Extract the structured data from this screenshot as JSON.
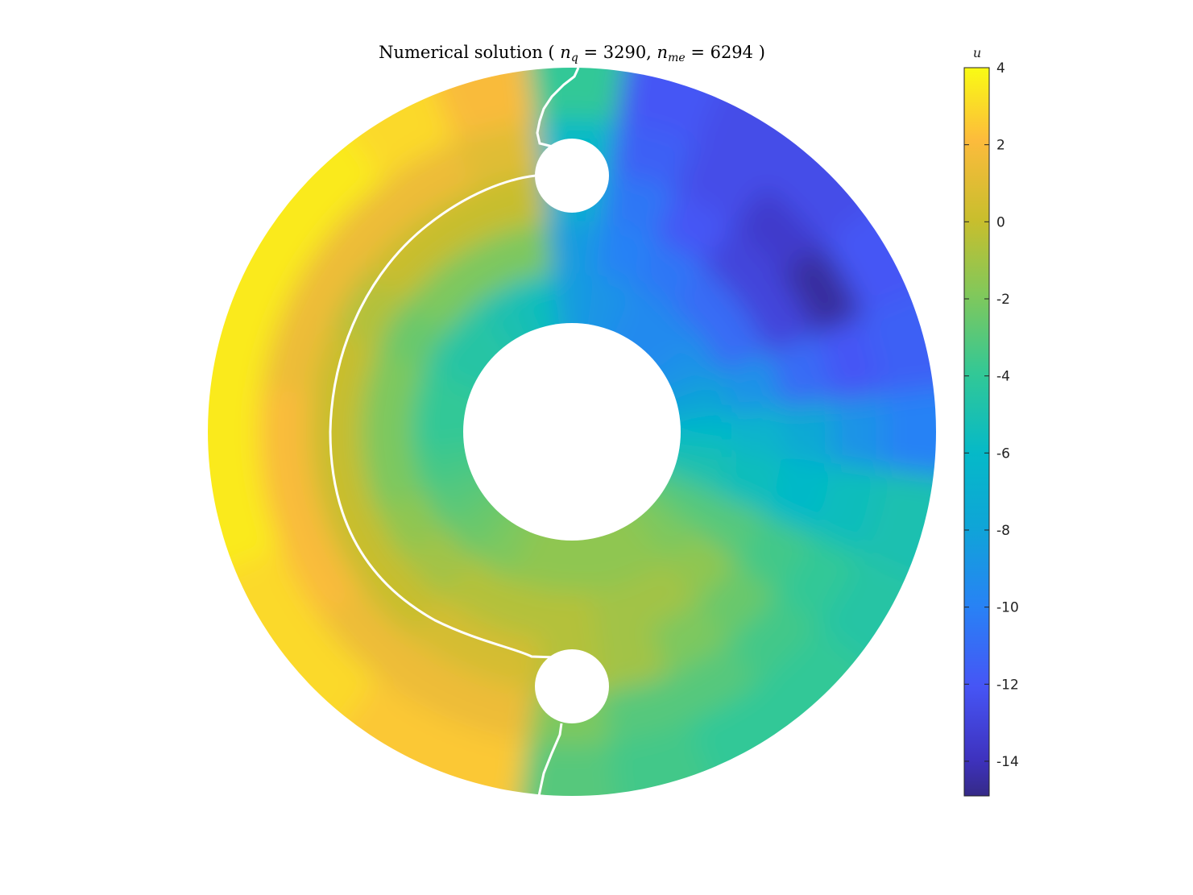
{
  "chart_data": {
    "type": "contour",
    "title": [
      {
        "text": "Numerical solution ( "
      },
      {
        "text": "n",
        "sub": "q"
      },
      {
        "text": " = 3290, "
      },
      {
        "text": "n",
        "sub": "me"
      },
      {
        "text": " = 6294 )"
      }
    ],
    "colorbar_label": "u",
    "clim": [
      -14.9,
      4
    ],
    "cticks": [
      4,
      2,
      0,
      -2,
      -4,
      -6,
      -8,
      -10,
      -12,
      -14
    ],
    "colormap": "parula",
    "r": [
      0.37,
      0.51,
      0.65,
      0.79,
      0.93
    ],
    "theta": [
      0,
      15,
      30,
      45,
      60,
      75,
      90,
      105,
      120,
      135,
      150,
      165,
      180,
      195,
      210,
      225,
      240,
      255,
      270,
      285,
      300,
      315,
      330,
      345
    ],
    "values": [
      [
        -6,
        -6.5,
        -7.5,
        -9,
        -10
      ],
      [
        -8,
        -9,
        -11,
        -12,
        -11.5
      ],
      [
        -9,
        -11,
        -13,
        -14.5,
        -12
      ],
      [
        -9.5,
        -11,
        -13,
        -13.5,
        -12.5
      ],
      [
        -9.5,
        -10.5,
        -12,
        -12.5,
        -12.5
      ],
      [
        -9,
        -10,
        -10.5,
        -11.5,
        -12
      ],
      [
        -8.5,
        -8.5,
        -7,
        -6,
        -4
      ],
      [
        -5.5,
        -2,
        0,
        1,
        2
      ],
      [
        -5,
        -2,
        0,
        1.5,
        3
      ],
      [
        -4.5,
        -2,
        0,
        1.5,
        3.5
      ],
      [
        -4.5,
        -2.5,
        -0.5,
        1.5,
        3.5
      ],
      [
        -4,
        -2,
        0,
        1.5,
        3.5
      ],
      [
        -4,
        -2,
        0,
        2,
        3.5
      ],
      [
        -3.5,
        -2,
        0,
        2,
        3.5
      ],
      [
        -3,
        -1.5,
        0,
        2,
        3
      ],
      [
        -2.5,
        -1,
        0,
        1.5,
        3
      ],
      [
        -2,
        -0.5,
        0.5,
        1.5,
        2.5
      ],
      [
        -1.5,
        -0.5,
        0.5,
        1.5,
        2.5
      ],
      [
        -1.5,
        -0.5,
        -0.5,
        -2,
        -3
      ],
      [
        -1.5,
        -1,
        -1,
        -3,
        -3.5
      ],
      [
        -1.5,
        -1,
        -2,
        -3,
        -4
      ],
      [
        -2,
        -1.5,
        -2.5,
        -3.5,
        -4
      ],
      [
        -3,
        -3,
        -3.5,
        -4,
        -4.5
      ],
      [
        -5,
        -5.5,
        -6,
        -5.5,
        -5
      ]
    ]
  }
}
